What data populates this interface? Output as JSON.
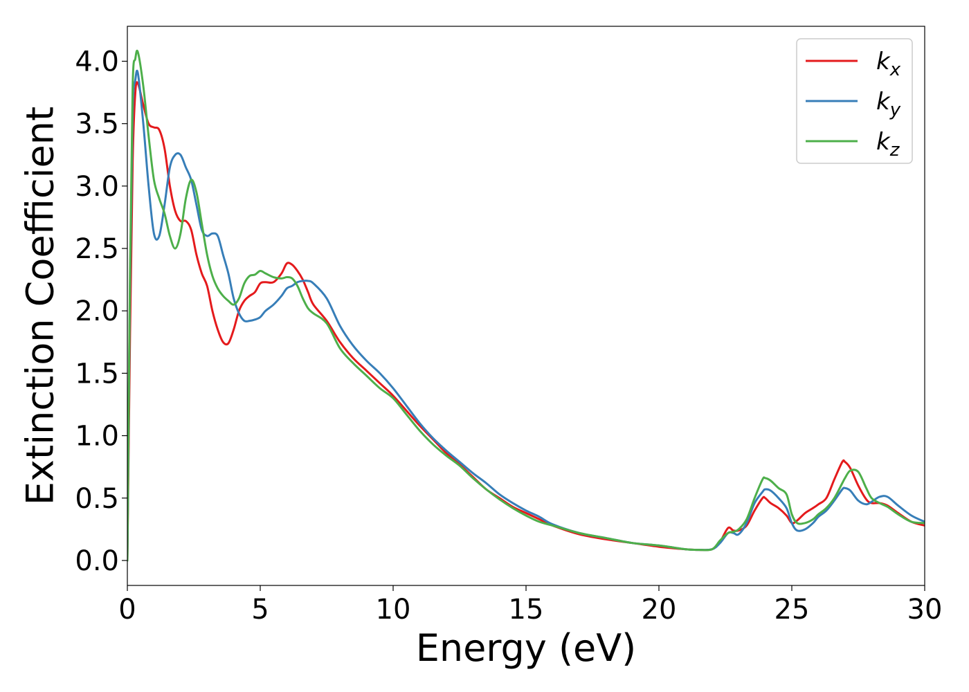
{
  "chart_data": {
    "type": "line",
    "title": "",
    "xlabel": "Energy (eV)",
    "ylabel": "Extinction Coefficient",
    "xlim": [
      0,
      30
    ],
    "ylim": [
      -0.2,
      4.28
    ],
    "xticks": [
      0,
      5,
      10,
      15,
      20,
      25,
      30
    ],
    "yticks": [
      0.0,
      0.5,
      1.0,
      1.5,
      2.0,
      2.5,
      3.0,
      3.5,
      4.0
    ],
    "xtick_labels": [
      "0",
      "5",
      "10",
      "15",
      "20",
      "25",
      "30"
    ],
    "ytick_labels": [
      "0.0",
      "0.5",
      "1.0",
      "1.5",
      "2.0",
      "2.5",
      "3.0",
      "3.5",
      "4.0"
    ],
    "grid": false,
    "legend_position": "top-right",
    "series": [
      {
        "name": "k_x",
        "label_base": "k",
        "label_sub": "x",
        "color": "#e41a1c",
        "x": [
          0,
          0.1,
          0.2,
          0.3,
          0.4,
          0.6,
          0.8,
          1.0,
          1.2,
          1.4,
          1.6,
          1.8,
          2.0,
          2.2,
          2.4,
          2.6,
          2.8,
          3.0,
          3.2,
          3.4,
          3.6,
          3.8,
          4.0,
          4.2,
          4.4,
          4.6,
          4.8,
          5.0,
          5.2,
          5.5,
          5.8,
          6.0,
          6.2,
          6.4,
          6.6,
          6.8,
          7.0,
          7.5,
          8.0,
          8.5,
          9.0,
          9.5,
          10.0,
          10.5,
          11.0,
          11.5,
          12.0,
          12.5,
          13.0,
          13.5,
          14.0,
          14.5,
          15.0,
          15.5,
          16.0,
          17.0,
          18.0,
          19.0,
          20.0,
          21.0,
          21.5,
          22.0,
          22.3,
          22.6,
          22.8,
          23.0,
          23.3,
          23.6,
          23.9,
          24.0,
          24.2,
          24.5,
          24.8,
          25.0,
          25.2,
          25.5,
          25.8,
          26.0,
          26.3,
          26.6,
          26.9,
          27.0,
          27.2,
          27.5,
          27.8,
          28.0,
          28.3,
          28.6,
          29.0,
          29.5,
          30.0
        ],
        "y": [
          0.0,
          1.8,
          3.2,
          3.75,
          3.82,
          3.65,
          3.5,
          3.47,
          3.45,
          3.3,
          3.0,
          2.8,
          2.72,
          2.72,
          2.65,
          2.45,
          2.3,
          2.2,
          2.0,
          1.85,
          1.75,
          1.74,
          1.85,
          2.0,
          2.08,
          2.12,
          2.15,
          2.22,
          2.23,
          2.23,
          2.3,
          2.38,
          2.37,
          2.32,
          2.25,
          2.15,
          2.05,
          1.92,
          1.75,
          1.62,
          1.52,
          1.42,
          1.32,
          1.2,
          1.08,
          0.97,
          0.86,
          0.77,
          0.67,
          0.57,
          0.5,
          0.43,
          0.38,
          0.33,
          0.28,
          0.21,
          0.17,
          0.14,
          0.11,
          0.09,
          0.085,
          0.09,
          0.15,
          0.26,
          0.24,
          0.24,
          0.28,
          0.4,
          0.5,
          0.5,
          0.46,
          0.42,
          0.36,
          0.3,
          0.32,
          0.38,
          0.42,
          0.45,
          0.5,
          0.65,
          0.79,
          0.79,
          0.74,
          0.6,
          0.49,
          0.46,
          0.46,
          0.44,
          0.38,
          0.31,
          0.28
        ]
      },
      {
        "name": "k_y",
        "label_base": "k",
        "label_sub": "y",
        "color": "#377eb8",
        "x": [
          0,
          0.1,
          0.2,
          0.3,
          0.4,
          0.6,
          0.8,
          1.0,
          1.2,
          1.4,
          1.6,
          1.8,
          2.0,
          2.2,
          2.4,
          2.6,
          2.8,
          3.0,
          3.2,
          3.4,
          3.6,
          3.8,
          4.0,
          4.2,
          4.4,
          4.6,
          4.8,
          5.0,
          5.2,
          5.5,
          5.8,
          6.0,
          6.2,
          6.4,
          6.6,
          6.8,
          7.0,
          7.5,
          8.0,
          8.5,
          9.0,
          9.5,
          10.0,
          10.5,
          11.0,
          11.5,
          12.0,
          12.5,
          13.0,
          13.5,
          14.0,
          14.5,
          15.0,
          15.5,
          16.0,
          17.0,
          18.0,
          19.0,
          20.0,
          21.0,
          21.5,
          22.0,
          22.3,
          22.6,
          22.8,
          23.0,
          23.3,
          23.6,
          23.9,
          24.0,
          24.2,
          24.5,
          24.8,
          25.0,
          25.2,
          25.5,
          25.8,
          26.0,
          26.3,
          26.6,
          26.9,
          27.0,
          27.2,
          27.5,
          27.8,
          28.0,
          28.3,
          28.6,
          29.0,
          29.5,
          30.0
        ],
        "y": [
          0.0,
          2.2,
          3.6,
          3.85,
          3.9,
          3.5,
          3.0,
          2.62,
          2.6,
          2.85,
          3.15,
          3.25,
          3.25,
          3.15,
          3.05,
          2.85,
          2.65,
          2.6,
          2.62,
          2.6,
          2.45,
          2.3,
          2.1,
          1.98,
          1.92,
          1.92,
          1.93,
          1.95,
          2.0,
          2.05,
          2.12,
          2.18,
          2.2,
          2.23,
          2.24,
          2.24,
          2.22,
          2.1,
          1.88,
          1.72,
          1.6,
          1.5,
          1.38,
          1.24,
          1.1,
          0.98,
          0.88,
          0.79,
          0.7,
          0.62,
          0.53,
          0.46,
          0.4,
          0.35,
          0.29,
          0.22,
          0.18,
          0.14,
          0.12,
          0.09,
          0.085,
          0.09,
          0.14,
          0.22,
          0.22,
          0.21,
          0.3,
          0.46,
          0.55,
          0.57,
          0.56,
          0.5,
          0.42,
          0.3,
          0.24,
          0.25,
          0.3,
          0.35,
          0.4,
          0.48,
          0.57,
          0.58,
          0.56,
          0.48,
          0.45,
          0.47,
          0.51,
          0.51,
          0.44,
          0.36,
          0.31
        ]
      },
      {
        "name": "k_z",
        "label_base": "k",
        "label_sub": "z",
        "color": "#4daf4a",
        "x": [
          0,
          0.1,
          0.2,
          0.3,
          0.4,
          0.6,
          0.8,
          1.0,
          1.2,
          1.4,
          1.6,
          1.8,
          2.0,
          2.2,
          2.4,
          2.6,
          2.8,
          3.0,
          3.2,
          3.4,
          3.6,
          3.8,
          4.0,
          4.2,
          4.4,
          4.6,
          4.8,
          5.0,
          5.2,
          5.5,
          5.8,
          6.0,
          6.2,
          6.4,
          6.6,
          6.8,
          7.0,
          7.5,
          8.0,
          8.5,
          9.0,
          9.5,
          10.0,
          10.5,
          11.0,
          11.5,
          12.0,
          12.5,
          13.0,
          13.5,
          14.0,
          14.5,
          15.0,
          15.5,
          16.0,
          17.0,
          18.0,
          19.0,
          20.0,
          21.0,
          21.5,
          22.0,
          22.3,
          22.6,
          22.8,
          23.0,
          23.3,
          23.6,
          23.9,
          24.0,
          24.2,
          24.5,
          24.8,
          25.0,
          25.2,
          25.5,
          25.8,
          26.0,
          26.3,
          26.6,
          26.9,
          27.0,
          27.2,
          27.5,
          27.8,
          28.0,
          28.3,
          28.6,
          29.0,
          29.5,
          30.0
        ],
        "y": [
          0.0,
          2.3,
          3.8,
          4.02,
          4.07,
          3.8,
          3.4,
          3.05,
          2.9,
          2.78,
          2.6,
          2.5,
          2.62,
          2.9,
          3.05,
          2.95,
          2.7,
          2.45,
          2.28,
          2.18,
          2.12,
          2.08,
          2.05,
          2.1,
          2.22,
          2.28,
          2.29,
          2.32,
          2.3,
          2.27,
          2.26,
          2.27,
          2.26,
          2.2,
          2.1,
          2.02,
          1.98,
          1.9,
          1.7,
          1.58,
          1.48,
          1.38,
          1.3,
          1.17,
          1.04,
          0.93,
          0.84,
          0.76,
          0.66,
          0.57,
          0.49,
          0.42,
          0.36,
          0.31,
          0.28,
          0.22,
          0.18,
          0.14,
          0.12,
          0.09,
          0.085,
          0.09,
          0.16,
          0.22,
          0.23,
          0.25,
          0.33,
          0.5,
          0.65,
          0.66,
          0.64,
          0.58,
          0.53,
          0.37,
          0.3,
          0.3,
          0.33,
          0.37,
          0.42,
          0.5,
          0.62,
          0.66,
          0.72,
          0.71,
          0.58,
          0.5,
          0.46,
          0.43,
          0.37,
          0.31,
          0.3
        ]
      }
    ]
  }
}
